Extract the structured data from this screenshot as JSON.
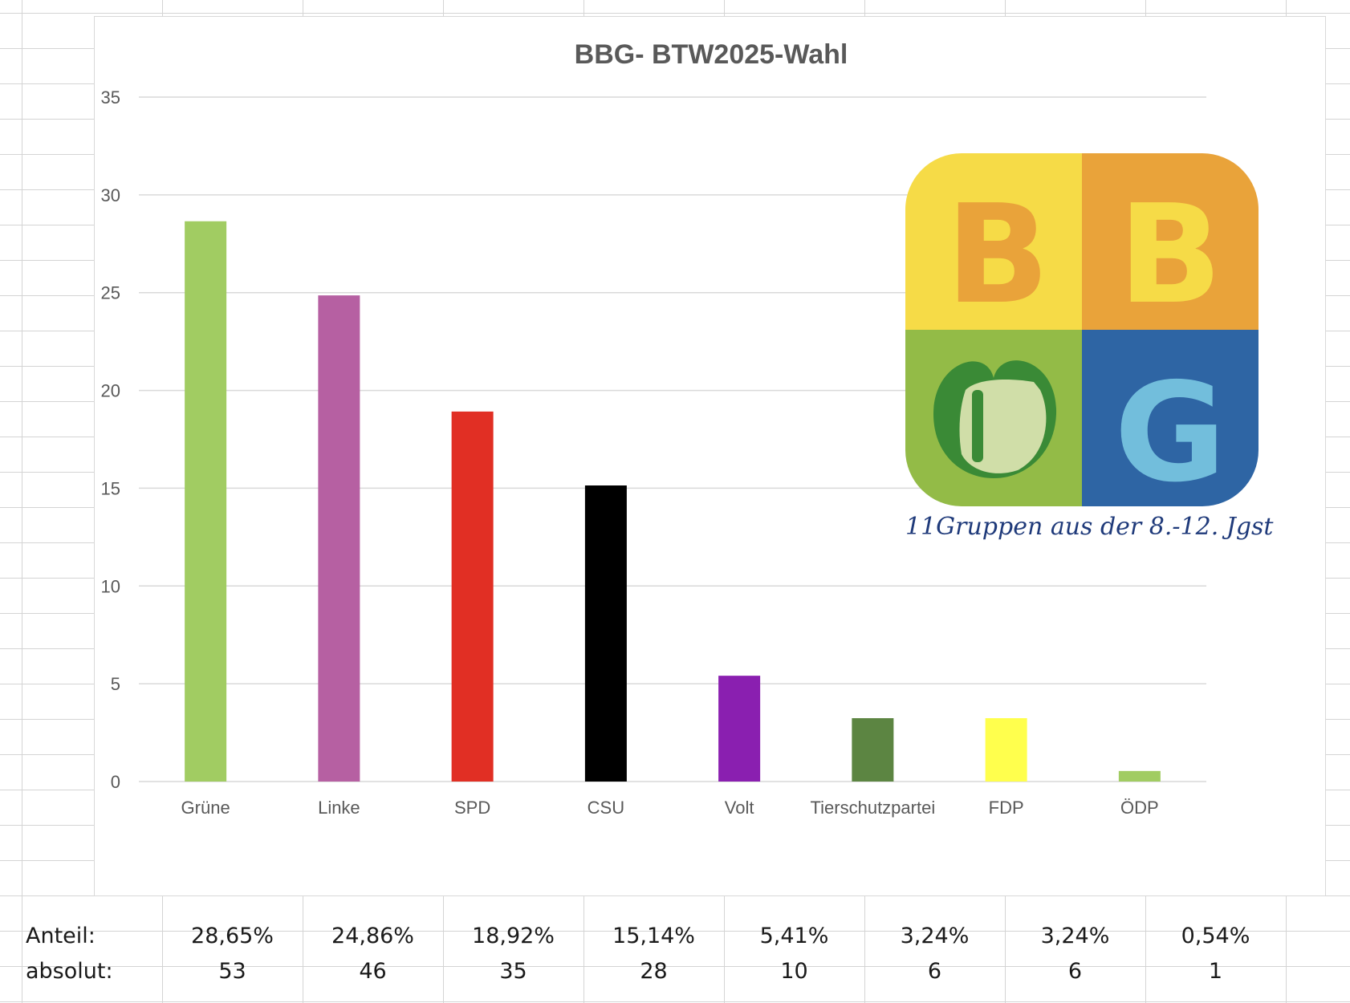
{
  "chart_data": {
    "type": "bar",
    "title": "BBG- BTW2025-Wahl",
    "categories": [
      "Grüne",
      "Linke",
      "SPD",
      "CSU",
      "Volt",
      "Tierschutzpartei",
      "FDP",
      "ÖDP"
    ],
    "values": [
      28.65,
      24.86,
      18.92,
      15.14,
      5.41,
      3.24,
      3.24,
      0.54
    ],
    "colors": [
      "#a1cc62",
      "#b660a2",
      "#e12f24",
      "#000000",
      "#8a1fb0",
      "#5c8542",
      "#ffff4d",
      "#a1cc62"
    ],
    "ylim": [
      0,
      35
    ],
    "yticks": [
      0,
      5,
      10,
      15,
      20,
      25,
      30,
      35
    ],
    "xlabel": "",
    "ylabel": "",
    "grid": true,
    "legend": "none"
  },
  "annotation": {
    "subtitle": "11Gruppen aus der 8.-12. Jgst"
  },
  "logo": {
    "letters": [
      "B",
      "B",
      "G"
    ],
    "colors": {
      "yellow": "#f6db47",
      "orange": "#e9a33a",
      "green": "#93bb47",
      "blue": "#2e65a4",
      "light_blue": "#72bedc",
      "dark_green": "#3a8a36",
      "pale_green": "#d0dea8"
    }
  },
  "table": {
    "rows": [
      {
        "label": "Anteil:",
        "cells": [
          "28,65%",
          "24,86%",
          "18,92%",
          "15,14%",
          "5,41%",
          "3,24%",
          "3,24%",
          "0,54%"
        ]
      },
      {
        "label": "absolut:",
        "cells": [
          "53",
          "46",
          "35",
          "28",
          "10",
          "6",
          "6",
          "1"
        ]
      }
    ]
  }
}
